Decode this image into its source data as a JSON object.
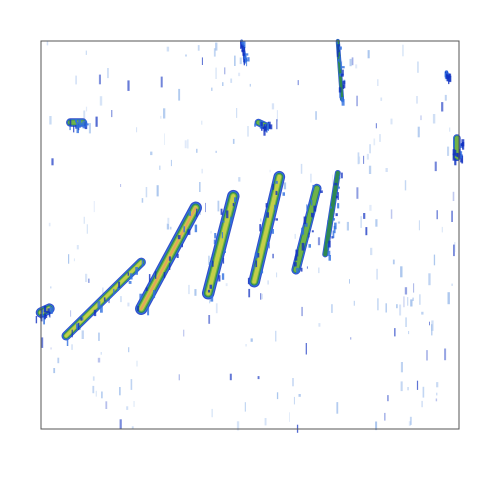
{
  "chart_data": {
    "type": "heatmap",
    "title": "",
    "xlabel": "",
    "ylabel": "",
    "xlim": [
      0,
      1
    ],
    "ylim": [
      0,
      1
    ],
    "grid": false,
    "legend": "none",
    "colors": {
      "background": "#ffffff",
      "frame": "#555555",
      "scale": [
        "#1030c0",
        "#2f6fe0",
        "#2e8a4a",
        "#74b648",
        "#c8d14a",
        "#e8a25a"
      ]
    },
    "features": [
      {
        "name": "ridge-1",
        "x0": 0.06,
        "y0": 0.24,
        "x1": 0.24,
        "y1": 0.43,
        "w": 0.022,
        "intensity": 0.8
      },
      {
        "name": "ridge-2",
        "x0": 0.24,
        "y0": 0.31,
        "x1": 0.37,
        "y1": 0.57,
        "w": 0.03,
        "intensity": 0.95
      },
      {
        "name": "ridge-3",
        "x0": 0.4,
        "y0": 0.35,
        "x1": 0.46,
        "y1": 0.6,
        "w": 0.03,
        "intensity": 0.85
      },
      {
        "name": "ridge-4",
        "x0": 0.51,
        "y0": 0.38,
        "x1": 0.57,
        "y1": 0.65,
        "w": 0.028,
        "intensity": 0.85
      },
      {
        "name": "ridge-5",
        "x0": 0.61,
        "y0": 0.41,
        "x1": 0.66,
        "y1": 0.62,
        "w": 0.022,
        "intensity": 0.7
      },
      {
        "name": "ridge-6",
        "x0": 0.68,
        "y0": 0.45,
        "x1": 0.71,
        "y1": 0.66,
        "w": 0.014,
        "intensity": 0.5
      },
      {
        "name": "left-edge-blob",
        "x0": 0.0,
        "y0": 0.3,
        "x1": 0.02,
        "y1": 0.31,
        "w": 0.025,
        "intensity": 0.75
      },
      {
        "name": "upper-left-blob",
        "x0": 0.07,
        "y0": 0.79,
        "x1": 0.1,
        "y1": 0.79,
        "w": 0.02,
        "intensity": 0.7
      },
      {
        "name": "mid-blob",
        "x0": 0.52,
        "y0": 0.79,
        "x1": 0.54,
        "y1": 0.78,
        "w": 0.018,
        "intensity": 0.65
      },
      {
        "name": "right-edge-blob",
        "x0": 0.995,
        "y0": 0.7,
        "x1": 0.995,
        "y1": 0.75,
        "w": 0.018,
        "intensity": 0.6
      },
      {
        "name": "top-streak-1",
        "x0": 0.48,
        "y0": 1.0,
        "x1": 0.49,
        "y1": 0.95,
        "w": 0.006,
        "intensity": 0.35
      },
      {
        "name": "top-streak-2",
        "x0": 0.71,
        "y0": 1.0,
        "x1": 0.72,
        "y1": 0.85,
        "w": 0.01,
        "intensity": 0.45
      },
      {
        "name": "top-right-dot",
        "x0": 0.97,
        "y0": 0.92,
        "x1": 0.97,
        "y1": 0.91,
        "w": 0.008,
        "intensity": 0.3
      }
    ],
    "speckle_seed": 17
  }
}
